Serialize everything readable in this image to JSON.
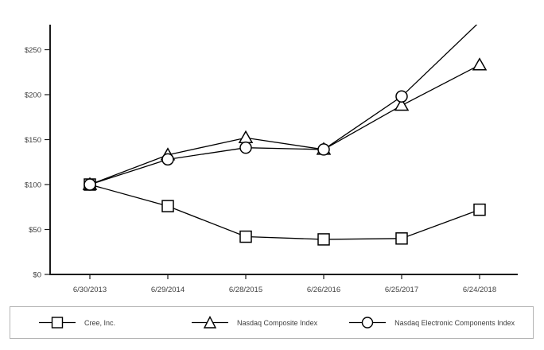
{
  "chart_data": {
    "type": "line",
    "title": "",
    "x_labels": [
      "6/30/2013",
      "6/29/2014",
      "6/28/2015",
      "6/26/2016",
      "6/25/2017",
      "6/24/2018"
    ],
    "y_ticks": [
      "$0",
      "$50",
      "$100",
      "$150",
      "$200",
      "$250"
    ],
    "y_tick_values": [
      0,
      50,
      100,
      150,
      200,
      250
    ],
    "ylim": [
      0,
      277
    ],
    "grid": false,
    "legend_position": "bottom-boxed",
    "series": [
      {
        "name": "Cree, Inc.",
        "marker": "square",
        "values": [
          100,
          76,
          42,
          39,
          40,
          72
        ]
      },
      {
        "name": "Nasdaq Composite Index",
        "marker": "triangle",
        "values": [
          100,
          133,
          152,
          139,
          188,
          233
        ]
      },
      {
        "name": "Nasdaq Electronic Components Index",
        "marker": "circle",
        "values": [
          100,
          128,
          141,
          139,
          198,
          281
        ]
      }
    ],
    "colors": {
      "line": "#000000",
      "marker_fill": "#ffffff",
      "axis": "#1a1a1a",
      "text": "#404040",
      "legend_border": "#b5b5b5"
    }
  }
}
